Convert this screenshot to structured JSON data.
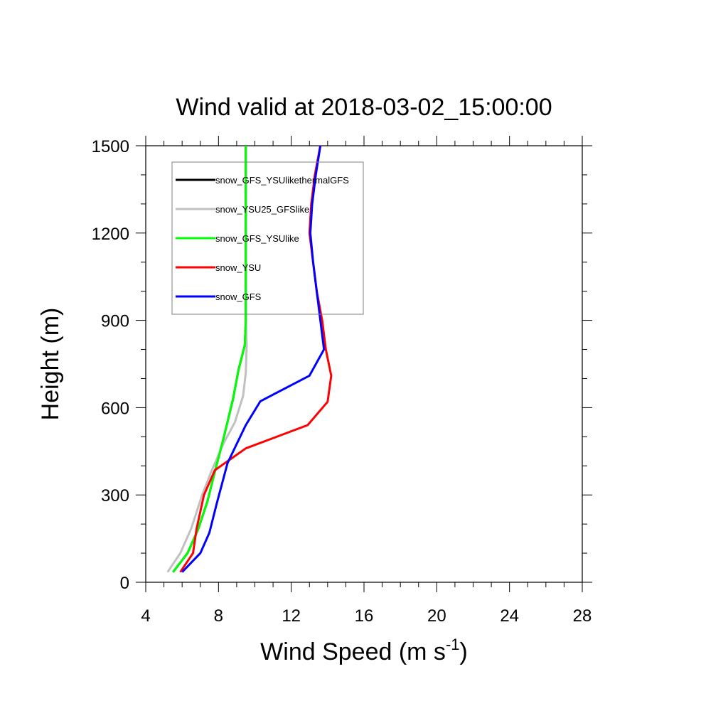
{
  "chart_data": {
    "type": "line",
    "title": "Wind valid at 2018-03-02_15:00:00",
    "xlabel_main": "Wind Speed (m s",
    "xlabel_sup": "-1",
    "xlabel_close": ")",
    "ylabel": "Height (m)",
    "xlim": [
      4,
      28
    ],
    "ylim": [
      0,
      1500
    ],
    "xticks": [
      4,
      8,
      12,
      16,
      20,
      24,
      28
    ],
    "xtick_labels": [
      "4",
      "8",
      "12",
      "16",
      "20",
      "24",
      "28"
    ],
    "yticks": [
      0,
      300,
      600,
      900,
      1200,
      1500
    ],
    "ytick_labels": [
      "0",
      "300",
      "600",
      "900",
      "1200",
      "1500"
    ],
    "legend_position": "top-left",
    "series": [
      {
        "name": "snow_GFS_YSUlikethermalGFS",
        "color": "#000000",
        "points": [
          [
            5.5,
            35
          ],
          [
            6.3,
            100
          ],
          [
            6.9,
            185
          ],
          [
            7.4,
            280
          ],
          [
            7.8,
            380
          ],
          [
            8.3,
            500
          ],
          [
            8.8,
            630
          ],
          [
            9.1,
            730
          ],
          [
            9.45,
            815
          ],
          [
            9.5,
            900
          ],
          [
            9.5,
            1100
          ],
          [
            9.5,
            1300
          ],
          [
            9.5,
            1500
          ]
        ]
      },
      {
        "name": "snow_YSU25_GFSlike",
        "color": "#c0c0c0",
        "points": [
          [
            5.2,
            35
          ],
          [
            5.9,
            100
          ],
          [
            6.5,
            185
          ],
          [
            7.1,
            300
          ],
          [
            7.6,
            380
          ],
          [
            8.3,
            480
          ],
          [
            8.9,
            550
          ],
          [
            9.35,
            640
          ],
          [
            9.5,
            720
          ],
          [
            9.55,
            815
          ],
          [
            9.5,
            900
          ],
          [
            9.5,
            1100
          ],
          [
            9.5,
            1300
          ],
          [
            9.5,
            1500
          ]
        ]
      },
      {
        "name": "snow_GFS_YSUlike",
        "color": "#00ff00",
        "points": [
          [
            5.5,
            35
          ],
          [
            6.3,
            100
          ],
          [
            6.9,
            185
          ],
          [
            7.4,
            280
          ],
          [
            7.8,
            380
          ],
          [
            8.3,
            500
          ],
          [
            8.8,
            630
          ],
          [
            9.1,
            730
          ],
          [
            9.45,
            815
          ],
          [
            9.5,
            900
          ],
          [
            9.5,
            1100
          ],
          [
            9.5,
            1300
          ],
          [
            9.5,
            1500
          ]
        ]
      },
      {
        "name": "snow_YSU",
        "color": "#ff0000",
        "points": [
          [
            5.9,
            35
          ],
          [
            6.6,
            100
          ],
          [
            6.8,
            185
          ],
          [
            7.2,
            300
          ],
          [
            7.8,
            385
          ],
          [
            9.5,
            460
          ],
          [
            12.9,
            540
          ],
          [
            14.0,
            620
          ],
          [
            14.2,
            710
          ],
          [
            13.9,
            800
          ],
          [
            13.7,
            900
          ],
          [
            13.4,
            1000
          ],
          [
            13.2,
            1100
          ],
          [
            13.0,
            1200
          ],
          [
            13.1,
            1300
          ],
          [
            13.3,
            1400
          ],
          [
            13.6,
            1500
          ]
        ]
      },
      {
        "name": "snow_GFS",
        "color": "#0000ff",
        "points": [
          [
            6.0,
            35
          ],
          [
            7.0,
            100
          ],
          [
            7.5,
            170
          ],
          [
            7.9,
            270
          ],
          [
            8.5,
            410
          ],
          [
            9.5,
            540
          ],
          [
            10.3,
            622
          ],
          [
            13.0,
            710
          ],
          [
            13.8,
            800
          ],
          [
            13.6,
            900
          ],
          [
            13.4,
            1000
          ],
          [
            13.2,
            1100
          ],
          [
            13.05,
            1200
          ],
          [
            13.15,
            1300
          ],
          [
            13.35,
            1400
          ],
          [
            13.6,
            1500
          ]
        ]
      }
    ]
  }
}
